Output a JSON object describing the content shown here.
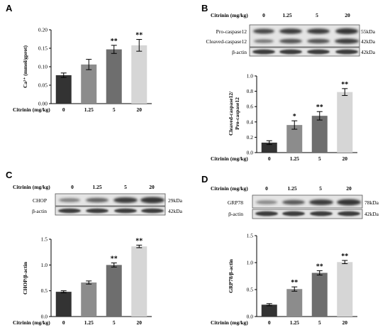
{
  "panels": {
    "A": {
      "letter": "A"
    },
    "B": {
      "letter": "B",
      "blot": {
        "header": "Citrinin (mg/kg)",
        "lanes": [
          "0",
          "1.25",
          "5",
          "20"
        ],
        "rows": [
          {
            "label": "Pro-caspase12",
            "kda": "55kDa"
          },
          {
            "label": "Cleaved-caspase12",
            "kda": "42kDa"
          },
          {
            "label": "β-actin",
            "kda": "42kDa"
          }
        ]
      }
    },
    "C": {
      "letter": "C",
      "blot": {
        "header": "Citrinin  (mg/kg)",
        "lanes": [
          "0",
          "1.25",
          "5",
          "20"
        ],
        "rows": [
          {
            "label": "CHOP",
            "kda": "29kDa"
          },
          {
            "label": "β-actin",
            "kda": "42kDa"
          }
        ]
      }
    },
    "D": {
      "letter": "D",
      "blot": {
        "header": "Citrinin  (mg/kg)",
        "lanes": [
          "0",
          "1.25",
          "5",
          "20"
        ],
        "rows": [
          {
            "label": "GRP78",
            "kda": "78kDa"
          },
          {
            "label": "β-actin",
            "kda": "42kDa"
          }
        ]
      }
    }
  },
  "bar_colors": [
    "#333333",
    "#8c8c8c",
    "#6e6e6e",
    "#d6d6d6"
  ],
  "chart_data": [
    {
      "id": "a",
      "type": "bar",
      "categories": [
        "0",
        "1.25",
        "5",
        "20"
      ],
      "values": [
        0.077,
        0.106,
        0.147,
        0.158
      ],
      "errors": [
        0.006,
        0.014,
        0.011,
        0.016
      ],
      "significance": [
        "",
        "",
        "**",
        "**"
      ],
      "ylabel": "Ca²⁺ (mmol/gprot)",
      "xlabel": "Citrinin (mg/kg)",
      "ylim": [
        0,
        0.2
      ],
      "yticks": [
        "0.00",
        "0.05",
        "0.10",
        "0.15",
        "0.20"
      ]
    },
    {
      "id": "b",
      "type": "bar",
      "categories": [
        "0",
        "1.25",
        "5",
        "20"
      ],
      "values": [
        0.13,
        0.36,
        0.48,
        0.79
      ],
      "errors": [
        0.025,
        0.055,
        0.055,
        0.045
      ],
      "significance": [
        "",
        "*",
        "**",
        "**"
      ],
      "ylabel": "Cleaved-caspase12/ Pro-caspase12",
      "xlabel": "Citrinin (mg/kg)",
      "ylim": [
        0,
        1.0
      ],
      "yticks": [
        "0.0",
        "0.2",
        "0.4",
        "0.6",
        "0.8",
        "1.0"
      ]
    },
    {
      "id": "c",
      "type": "bar",
      "categories": [
        "0",
        "1.25",
        "5",
        "20"
      ],
      "values": [
        0.48,
        0.66,
        1.0,
        1.36
      ],
      "errors": [
        0.02,
        0.03,
        0.04,
        0.025
      ],
      "significance": [
        "",
        "",
        "**",
        "**"
      ],
      "ylabel": "CHOP/β-actin",
      "xlabel": "Citrinin (mg/kg)",
      "ylim": [
        0,
        1.5
      ],
      "yticks": [
        "0.0",
        "0.5",
        "1.0",
        "1.5"
      ]
    },
    {
      "id": "d",
      "type": "bar",
      "categories": [
        "0",
        "1.25",
        "5",
        "20"
      ],
      "values": [
        0.22,
        0.51,
        0.81,
        1.01
      ],
      "errors": [
        0.02,
        0.04,
        0.04,
        0.03
      ],
      "significance": [
        "",
        "**",
        "**",
        "**"
      ],
      "ylabel": "GRP78/β-actin",
      "xlabel": "Citrinin (mg/kg)",
      "ylim": [
        0,
        1.5
      ],
      "yticks": [
        "0.0",
        "0.5",
        "1.0",
        "1.5"
      ]
    }
  ]
}
